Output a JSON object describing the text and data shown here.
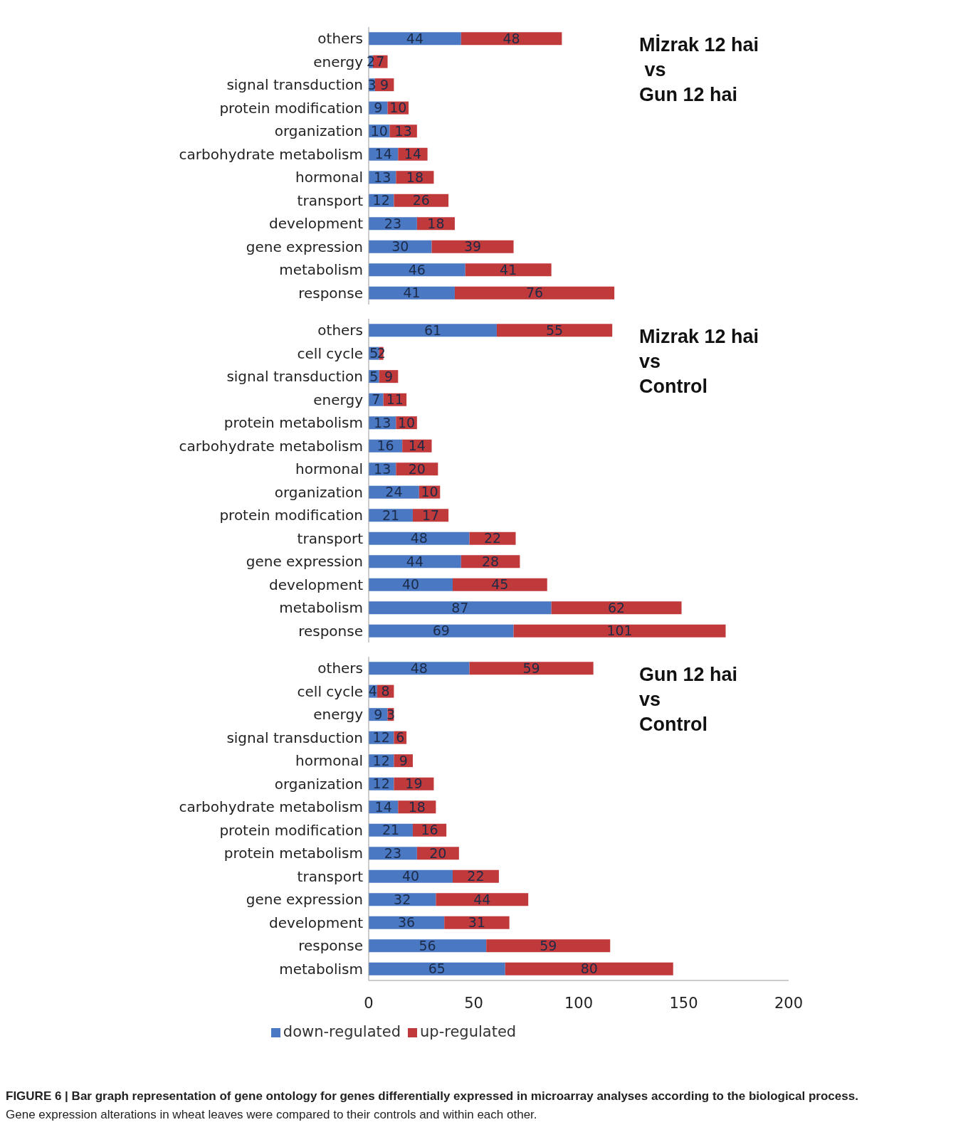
{
  "chart_data": [
    {
      "type": "bar",
      "orientation": "horizontal",
      "stacked": true,
      "data_labels": true,
      "tick_labels": "y",
      "xlim": [
        0,
        200
      ],
      "xticks": [
        0,
        50,
        100,
        150,
        200
      ],
      "categories": [
        "others",
        "energy",
        "signal transduction",
        "protein modification",
        "organization",
        "carbohydrate metabolism",
        "hormonal ",
        "transport",
        "development",
        "gene expression",
        "metabolism",
        "response"
      ],
      "series": [
        {
          "color": "#4a78c2",
          "values": [
            44,
            2,
            3,
            9,
            10,
            14,
            13,
            12,
            23,
            30,
            46,
            41
          ]
        },
        {
          "color": "#c0393b",
          "values": [
            48,
            7,
            9,
            10,
            13,
            14,
            18,
            26,
            18,
            39,
            41,
            76
          ]
        }
      ],
      "annotations": [
        "Mİzrak 12 hai\n vs\nGun 12 hai"
      ]
    },
    {
      "type": "bar",
      "orientation": "horizontal",
      "stacked": true,
      "data_labels": true,
      "tick_labels": "y",
      "xlim": [
        0,
        200
      ],
      "xticks": [
        0,
        50,
        100,
        150,
        200
      ],
      "categories": [
        "others",
        "cell cycle",
        "signal transduction",
        "energy",
        "protein metabolism",
        "carbohydrate metabolism",
        "hormonal ",
        "organization",
        "protein modification",
        "transport",
        "gene expression",
        "development",
        "metabolism",
        "response"
      ],
      "series": [
        {
          "color": "#4a78c2",
          "values": [
            61,
            5,
            5,
            7,
            13,
            16,
            13,
            24,
            21,
            48,
            44,
            40,
            87,
            69
          ]
        },
        {
          "color": "#c0393b",
          "values": [
            55,
            2,
            9,
            11,
            10,
            14,
            20,
            10,
            17,
            22,
            28,
            45,
            62,
            101
          ]
        }
      ],
      "annotations": [
        "Mizrak 12 hai\nvs\nControl"
      ]
    },
    {
      "type": "bar",
      "orientation": "horizontal",
      "stacked": true,
      "data_labels": true,
      "legend": "bottom",
      "xlim": [
        0,
        200
      ],
      "xticks": [
        0,
        50,
        100,
        150,
        200
      ],
      "categories": [
        "others",
        "cell cycle",
        "energy",
        "signal transduction",
        "hormonal ",
        "organization",
        "carbohydrate metabolism",
        "protein modification",
        "protein metabolism",
        "transport",
        "gene expression",
        "development",
        "response",
        "metabolism"
      ],
      "series": [
        {
          "name": "down-regulated",
          "color": "#4a78c2",
          "values": [
            48,
            4,
            9,
            12,
            12,
            12,
            14,
            21,
            23,
            40,
            32,
            36,
            56,
            65
          ]
        },
        {
          "name": "up-regulated",
          "color": "#c0393b",
          "values": [
            59,
            8,
            3,
            6,
            9,
            19,
            18,
            16,
            20,
            22,
            44,
            31,
            59,
            80
          ]
        }
      ],
      "annotations": [
        "Gun 12 hai\nvs\nControl",
        "FIGURE 6 | Bar graph representation of gene ontology for genes differentially expressed in microarray analyses according to the biological process.",
        "Gene expression alterations in wheat leaves were compared to their controls and within each other."
      ]
    }
  ]
}
